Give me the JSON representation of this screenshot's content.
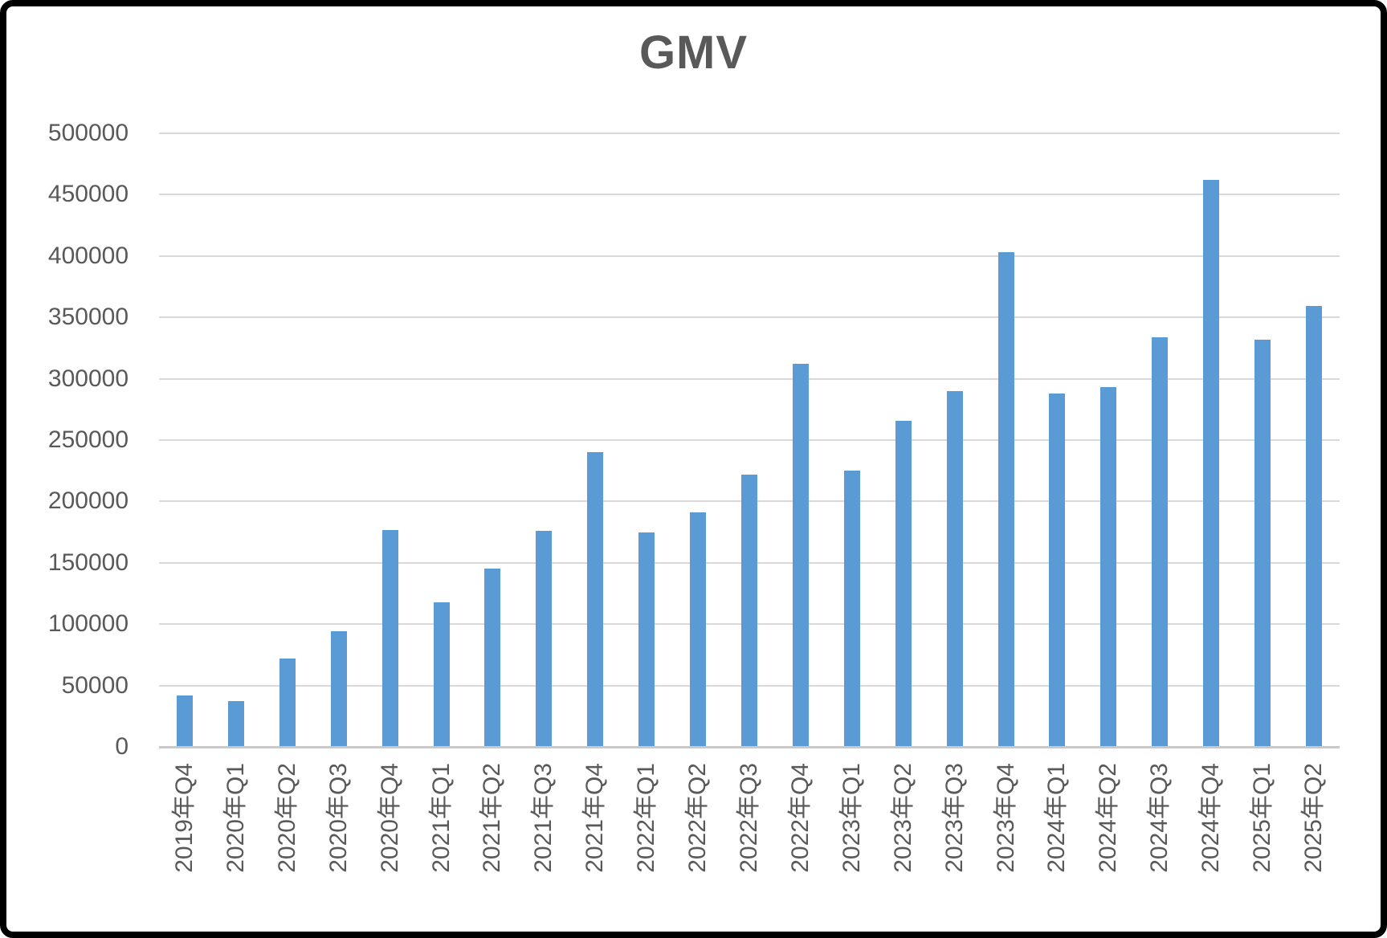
{
  "window": {
    "background": "#FFFFFF",
    "border_color": "#000000"
  },
  "chart_data": {
    "type": "bar",
    "title": "GMV",
    "categories": [
      "2019年Q4",
      "2020年Q1",
      "2020年Q2",
      "2020年Q3",
      "2020年Q4",
      "2021年Q1",
      "2021年Q2",
      "2021年Q3",
      "2021年Q4",
      "2022年Q1",
      "2022年Q2",
      "2022年Q3",
      "2022年Q4",
      "2023年Q1",
      "2023年Q2",
      "2023年Q3",
      "2023年Q4",
      "2024年Q1",
      "2024年Q2",
      "2024年Q3",
      "2024年Q4",
      "2025年Q1",
      "2025年Q2"
    ],
    "values": [
      42000,
      37000,
      72000,
      94000,
      177000,
      118000,
      145000,
      176000,
      240000,
      175000,
      191000,
      222000,
      312000,
      225000,
      266000,
      290000,
      403000,
      288000,
      293000,
      334000,
      462000,
      332000,
      359000
    ],
    "xlabel": "",
    "ylabel": "",
    "ylim": [
      0,
      500000
    ],
    "yticks": [
      0,
      50000,
      100000,
      150000,
      200000,
      250000,
      300000,
      350000,
      400000,
      450000,
      500000
    ],
    "grid": true,
    "legend": "none",
    "bar_color": "#5B9BD5",
    "gridline_color": "#D9D9D9",
    "axis_line_color": "#C9C9C9",
    "text_color": "#595959",
    "title_color": "#595959"
  }
}
